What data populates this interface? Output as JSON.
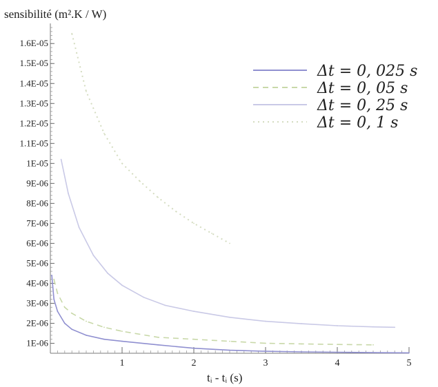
{
  "chart_data": {
    "type": "line",
    "ylabel": "sensibilité (m².K / W)",
    "xlabel": "tᵢ - tᵢ (s)",
    "xlim": [
      0,
      5
    ],
    "ylim": [
      5e-07,
      1.68e-05
    ],
    "xticks": [
      1,
      2,
      3,
      4,
      5
    ],
    "yticks": [
      {
        "v": 1e-06,
        "label": "1E-06"
      },
      {
        "v": 2e-06,
        "label": "2E-06"
      },
      {
        "v": 3e-06,
        "label": "3E-06"
      },
      {
        "v": 4e-06,
        "label": "4E-06"
      },
      {
        "v": 5e-06,
        "label": "5E-06"
      },
      {
        "v": 6e-06,
        "label": "6E-06"
      },
      {
        "v": 7e-06,
        "label": "7E-06"
      },
      {
        "v": 8e-06,
        "label": "8E-06"
      },
      {
        "v": 9e-06,
        "label": "9E-06"
      },
      {
        "v": 1e-05,
        "label": "1E-05"
      },
      {
        "v": 1.1e-05,
        "label": "1.1E-05"
      },
      {
        "v": 1.2e-05,
        "label": "1.2E-05"
      },
      {
        "v": 1.3e-05,
        "label": "1.3E-05"
      },
      {
        "v": 1.4e-05,
        "label": "1.4E-05"
      },
      {
        "v": 1.5e-05,
        "label": "1.5E-05"
      },
      {
        "v": 1.6e-05,
        "label": "1.6E-05"
      }
    ],
    "grid": false,
    "legend_position": "top-right",
    "series": [
      {
        "name": "Δt = 0, 025 s",
        "color": "#8f8fd0",
        "style": "solid",
        "x": [
          0.02,
          0.05,
          0.1,
          0.2,
          0.3,
          0.5,
          0.75,
          1,
          1.5,
          2,
          2.5,
          3,
          3.5,
          4,
          4.5,
          5
        ],
        "y": [
          4.4e-06,
          3.2e-06,
          2.6e-06,
          2e-06,
          1.7e-06,
          1.4e-06,
          1.2e-06,
          1.1e-06,
          9.2e-07,
          7.5e-07,
          6.5e-07,
          6e-07,
          5.7e-07,
          5.5e-07,
          5.3e-07,
          5.2e-07
        ]
      },
      {
        "name": "Δt = 0, 05 s",
        "color": "#c8d8a8",
        "style": "dashed",
        "x": [
          0.05,
          0.1,
          0.2,
          0.3,
          0.5,
          0.75,
          1,
          1.5,
          2,
          2.5,
          3,
          3.5,
          4,
          4.5
        ],
        "y": [
          4.2e-06,
          3.5e-06,
          2.8e-06,
          2.5e-06,
          2.1e-06,
          1.8e-06,
          1.6e-06,
          1.3e-06,
          1.2e-06,
          1.1e-06,
          1e-06,
          9.7e-07,
          9.4e-07,
          9.2e-07
        ]
      },
      {
        "name": "Δt = 0, 25 s",
        "color": "#c9c9e6",
        "style": "solid",
        "x": [
          0.15,
          0.25,
          0.4,
          0.6,
          0.8,
          1,
          1.3,
          1.6,
          2,
          2.5,
          3,
          3.5,
          4,
          4.5,
          4.8
        ],
        "y": [
          1.02e-05,
          8.5e-06,
          6.8e-06,
          5.4e-06,
          4.5e-06,
          3.9e-06,
          3.3e-06,
          2.9e-06,
          2.6e-06,
          2.3e-06,
          2.1e-06,
          1.98e-06,
          1.88e-06,
          1.82e-06,
          1.8e-06
        ]
      },
      {
        "name": "Δt = 0, 1 s",
        "color": "#d4dcc0",
        "style": "dotted",
        "x": [
          0.3,
          0.5,
          0.75,
          1,
          1.25,
          1.5,
          1.75,
          2,
          2.25,
          2.5
        ],
        "y": [
          1.65e-05,
          1.36e-05,
          1.15e-05,
          1e-05,
          9.1e-06,
          8.3e-06,
          7.6e-06,
          7e-06,
          6.5e-06,
          6e-06
        ]
      }
    ]
  }
}
